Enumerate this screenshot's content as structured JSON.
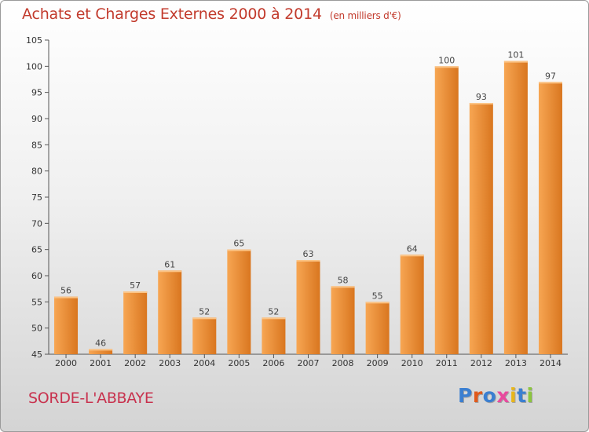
{
  "header": {
    "title": "Achats et Charges Externes 2000 à 2014",
    "subtitle": "(en milliers d'€)"
  },
  "footer": {
    "commune": "SORDE-L'ABBAYE",
    "logo": "Proxiti",
    "logo_colors": [
      "#3b7fd1",
      "#e05a1c",
      "#3b7fd1",
      "#e84a9e",
      "#e8b61a",
      "#3b7fd1",
      "#8cc63e"
    ]
  },
  "colors": {
    "bar_light": "#f7a653",
    "bar_dark": "#d9761f",
    "title": "#c23a2c",
    "commune": "#c8324e"
  },
  "chart_data": {
    "type": "bar",
    "title": "Achats et Charges Externes 2000 à 2014",
    "subtitle": "(en milliers d'€)",
    "categories": [
      "2000",
      "2001",
      "2002",
      "2003",
      "2004",
      "2005",
      "2006",
      "2007",
      "2008",
      "2009",
      "2010",
      "2011",
      "2012",
      "2013",
      "2014"
    ],
    "values": [
      56,
      46,
      57,
      61,
      52,
      65,
      52,
      63,
      58,
      55,
      64,
      100,
      93,
      101,
      97
    ],
    "ylim": [
      45,
      105
    ],
    "yticks": [
      45,
      50,
      55,
      60,
      65,
      70,
      75,
      80,
      85,
      90,
      95,
      100,
      105
    ],
    "grid": false,
    "data_labels": true
  }
}
